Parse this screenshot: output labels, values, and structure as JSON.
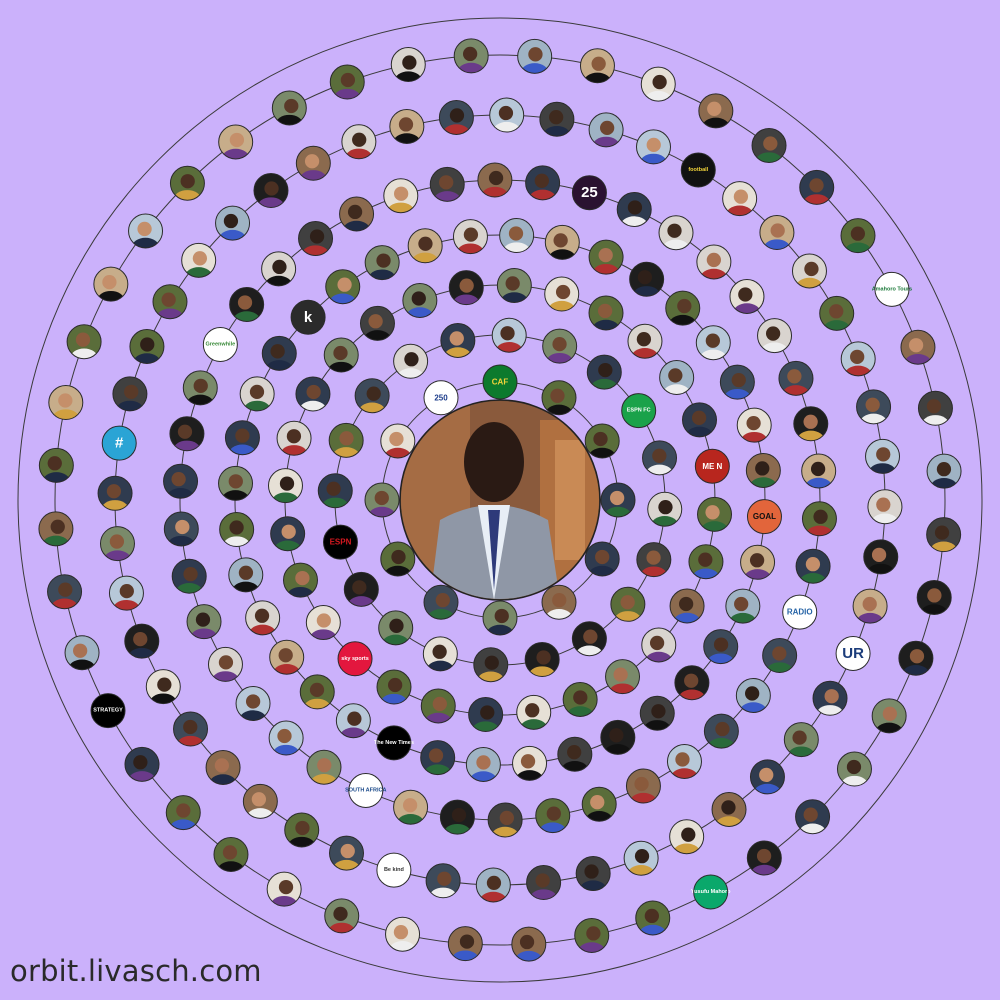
{
  "footer": {
    "site": "orbit.livasch.com"
  },
  "colors": {
    "background": "#cbb1fb",
    "ring": "#3a3a3a",
    "avatar_border": "#2b2b2b"
  },
  "center": {
    "label": "center-profile-photo"
  },
  "rings": [
    {
      "name": "ring-1",
      "count": 12
    },
    {
      "name": "ring-2",
      "count": 20
    },
    {
      "name": "ring-3",
      "count": 28
    },
    {
      "name": "ring-4",
      "count": 36
    },
    {
      "name": "ring-5",
      "count": 42
    },
    {
      "name": "ring-6",
      "count": 48
    },
    {
      "name": "ring-7",
      "count": 44
    }
  ],
  "brand_avatars": [
    {
      "text": "CAF",
      "bg": "#0c7a2d",
      "fg": "#f2d43a"
    },
    {
      "text": "250",
      "bg": "#ffffff",
      "fg": "#1c3c8a"
    },
    {
      "text": "ESPN FC",
      "bg": "#1aa24a",
      "fg": "#ffffff"
    },
    {
      "text": "ESPN",
      "bg": "#000000",
      "fg": "#d71920"
    },
    {
      "text": "ME N",
      "bg": "#b8261e",
      "fg": "#ffffff"
    },
    {
      "text": "sky sports",
      "bg": "#e3173e",
      "fg": "#ffffff"
    },
    {
      "text": "GOAL",
      "bg": "#e2653b",
      "fg": "#111111"
    },
    {
      "text": "The New Times",
      "bg": "#000000",
      "fg": "#ffffff"
    },
    {
      "text": "k",
      "bg": "#2b2b2b",
      "fg": "#ffffff"
    },
    {
      "text": "25",
      "bg": "#2a1230",
      "fg": "#ffffff"
    },
    {
      "text": "RADIO",
      "bg": "#ffffff",
      "fg": "#2563a6"
    },
    {
      "text": "SOUTH AFRICA",
      "bg": "#ffffff",
      "fg": "#1b4a8a"
    },
    {
      "text": "Greenwhile",
      "bg": "#ffffff",
      "fg": "#3a8a3a"
    },
    {
      "text": "football",
      "bg": "#111111",
      "fg": "#f2d43a"
    },
    {
      "text": "UR",
      "bg": "#ffffff",
      "fg": "#1b3c7a"
    },
    {
      "text": "Be kind",
      "bg": "#ffffff",
      "fg": "#333333"
    },
    {
      "text": "#",
      "bg": "#2aa4d5",
      "fg": "#ffffff"
    },
    {
      "text": "Amahoro Tours",
      "bg": "#ffffff",
      "fg": "#1d7a3a"
    },
    {
      "text": "Yusufu Mahoro",
      "bg": "#0aa86b",
      "fg": "#ffffff"
    },
    {
      "text": "STRATEGY",
      "bg": "#000000",
      "fg": "#ffffff"
    }
  ]
}
